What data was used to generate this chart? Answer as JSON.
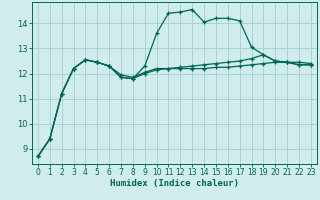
{
  "xlabel": "Humidex (Indice chaleur)",
  "background_color": "#d0ecec",
  "grid_color": "#a8d4d4",
  "line_color": "#006655",
  "xlim": [
    -0.5,
    23.5
  ],
  "ylim": [
    8.4,
    14.85
  ],
  "xticks": [
    0,
    1,
    2,
    3,
    4,
    5,
    6,
    7,
    8,
    9,
    10,
    11,
    12,
    13,
    14,
    15,
    16,
    17,
    18,
    19,
    20,
    21,
    22,
    23
  ],
  "yticks": [
    9,
    10,
    11,
    12,
    13,
    14
  ],
  "line1_y": [
    8.7,
    9.4,
    11.2,
    12.2,
    12.55,
    12.45,
    12.3,
    11.95,
    11.85,
    12.05,
    12.2,
    12.2,
    12.2,
    12.2,
    12.2,
    12.25,
    12.25,
    12.3,
    12.35,
    12.4,
    12.45,
    12.45,
    12.45,
    12.4
  ],
  "line2_y": [
    8.7,
    9.4,
    11.2,
    12.2,
    12.55,
    12.45,
    12.3,
    11.85,
    11.8,
    12.3,
    13.6,
    14.4,
    14.45,
    14.55,
    14.05,
    14.2,
    14.2,
    14.1,
    13.05,
    12.75,
    12.5,
    12.45,
    12.35,
    12.35
  ],
  "line3_y": [
    8.7,
    9.4,
    11.2,
    12.2,
    12.55,
    12.45,
    12.3,
    11.85,
    11.8,
    12.0,
    12.15,
    12.2,
    12.25,
    12.3,
    12.35,
    12.4,
    12.45,
    12.5,
    12.6,
    12.75,
    12.5,
    12.45,
    12.35,
    12.35
  ],
  "xlabel_fontsize": 6.5,
  "tick_fontsize": 5.5
}
